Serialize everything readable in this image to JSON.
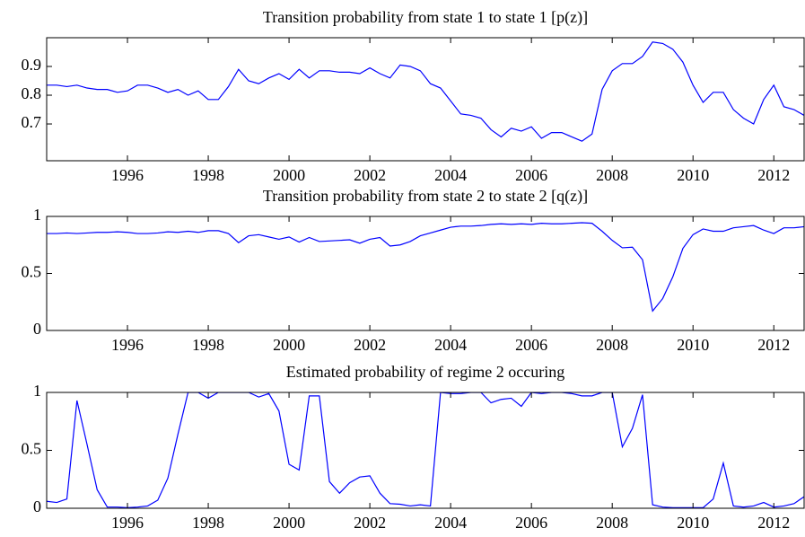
{
  "chart_data": [
    {
      "type": "line",
      "title": "Transition probability from state 1 to state 1 [p(z)]",
      "xlim": [
        1994,
        2012.75
      ],
      "xticks": [
        1996,
        1998,
        2000,
        2002,
        2004,
        2006,
        2008,
        2010,
        2012
      ],
      "ylim": [
        0.572,
        1.0
      ],
      "yticks": [
        0.7,
        0.8,
        0.9
      ],
      "grid": false,
      "x": [
        1994,
        1994.25,
        1994.5,
        1994.75,
        1995,
        1995.25,
        1995.5,
        1995.75,
        1996,
        1996.25,
        1996.5,
        1996.75,
        1997,
        1997.25,
        1997.5,
        1997.75,
        1998,
        1998.25,
        1998.5,
        1998.75,
        1999,
        1999.25,
        1999.5,
        1999.75,
        2000,
        2000.25,
        2000.5,
        2000.75,
        2001,
        2001.25,
        2001.5,
        2001.75,
        2002,
        2002.25,
        2002.5,
        2002.75,
        2003,
        2003.25,
        2003.5,
        2003.75,
        2004,
        2004.25,
        2004.5,
        2004.75,
        2005,
        2005.25,
        2005.5,
        2005.75,
        2006,
        2006.25,
        2006.5,
        2006.75,
        2007,
        2007.25,
        2007.5,
        2007.75,
        2008,
        2008.25,
        2008.5,
        2008.75,
        2009,
        2009.25,
        2009.5,
        2009.75,
        2010,
        2010.25,
        2010.5,
        2010.75,
        2011,
        2011.25,
        2011.5,
        2011.75,
        2012,
        2012.25,
        2012.5,
        2012.75
      ],
      "series": [
        {
          "color": "#0000ff",
          "values": [
            0.835,
            0.835,
            0.83,
            0.835,
            0.825,
            0.82,
            0.82,
            0.81,
            0.815,
            0.835,
            0.835,
            0.825,
            0.81,
            0.82,
            0.8,
            0.815,
            0.785,
            0.785,
            0.83,
            0.89,
            0.85,
            0.84,
            0.86,
            0.875,
            0.855,
            0.89,
            0.86,
            0.885,
            0.885,
            0.88,
            0.88,
            0.875,
            0.895,
            0.875,
            0.86,
            0.905,
            0.9,
            0.885,
            0.84,
            0.825,
            0.78,
            0.735,
            0.73,
            0.72,
            0.68,
            0.655,
            0.685,
            0.675,
            0.69,
            0.65,
            0.67,
            0.67,
            0.655,
            0.64,
            0.665,
            0.82,
            0.885,
            0.91,
            0.91,
            0.935,
            0.985,
            0.98,
            0.96,
            0.915,
            0.835,
            0.775,
            0.81,
            0.81,
            0.75,
            0.72,
            0.7,
            0.785,
            0.835,
            0.76,
            0.75,
            0.73
          ]
        }
      ]
    },
    {
      "type": "line",
      "title": "Transition probability from state 2 to state 2 [q(z)]",
      "xlim": [
        1994,
        2012.75
      ],
      "xticks": [
        1996,
        1998,
        2000,
        2002,
        2004,
        2006,
        2008,
        2010,
        2012
      ],
      "ylim": [
        0,
        1
      ],
      "yticks": [
        0,
        0.5,
        1
      ],
      "grid": false,
      "x": [
        1994,
        1994.25,
        1994.5,
        1994.75,
        1995,
        1995.25,
        1995.5,
        1995.75,
        1996,
        1996.25,
        1996.5,
        1996.75,
        1997,
        1997.25,
        1997.5,
        1997.75,
        1998,
        1998.25,
        1998.5,
        1998.75,
        1999,
        1999.25,
        1999.5,
        1999.75,
        2000,
        2000.25,
        2000.5,
        2000.75,
        2001,
        2001.25,
        2001.5,
        2001.75,
        2002,
        2002.25,
        2002.5,
        2002.75,
        2003,
        2003.25,
        2003.5,
        2003.75,
        2004,
        2004.25,
        2004.5,
        2004.75,
        2005,
        2005.25,
        2005.5,
        2005.75,
        2006,
        2006.25,
        2006.5,
        2006.75,
        2007,
        2007.25,
        2007.5,
        2007.75,
        2008,
        2008.25,
        2008.5,
        2008.75,
        2009,
        2009.25,
        2009.5,
        2009.75,
        2010,
        2010.25,
        2010.5,
        2010.75,
        2011,
        2011.25,
        2011.5,
        2011.75,
        2012,
        2012.25,
        2012.5,
        2012.75
      ],
      "series": [
        {
          "color": "#0000ff",
          "values": [
            0.85,
            0.85,
            0.855,
            0.85,
            0.855,
            0.86,
            0.86,
            0.865,
            0.86,
            0.85,
            0.85,
            0.855,
            0.865,
            0.86,
            0.87,
            0.86,
            0.875,
            0.875,
            0.85,
            0.77,
            0.83,
            0.84,
            0.82,
            0.8,
            0.82,
            0.775,
            0.815,
            0.78,
            0.785,
            0.79,
            0.795,
            0.765,
            0.8,
            0.815,
            0.74,
            0.75,
            0.78,
            0.83,
            0.855,
            0.88,
            0.905,
            0.915,
            0.915,
            0.92,
            0.93,
            0.935,
            0.93,
            0.935,
            0.93,
            0.94,
            0.935,
            0.935,
            0.94,
            0.945,
            0.94,
            0.87,
            0.79,
            0.725,
            0.73,
            0.62,
            0.17,
            0.28,
            0.47,
            0.72,
            0.84,
            0.89,
            0.87,
            0.87,
            0.9,
            0.91,
            0.92,
            0.88,
            0.85,
            0.9,
            0.9,
            0.91
          ]
        }
      ]
    },
    {
      "type": "line",
      "title": "Estimated probability of regime 2 occuring",
      "xlim": [
        1994,
        2012.75
      ],
      "xticks": [
        1996,
        1998,
        2000,
        2002,
        2004,
        2006,
        2008,
        2010,
        2012
      ],
      "ylim": [
        0,
        1
      ],
      "yticks": [
        0,
        0.5,
        1
      ],
      "grid": false,
      "x": [
        1994,
        1994.25,
        1994.5,
        1994.75,
        1995,
        1995.25,
        1995.5,
        1995.75,
        1996,
        1996.25,
        1996.5,
        1996.75,
        1997,
        1997.25,
        1997.5,
        1997.75,
        1998,
        1998.25,
        1998.5,
        1998.75,
        1999,
        1999.25,
        1999.5,
        1999.75,
        2000,
        2000.25,
        2000.5,
        2000.75,
        2001,
        2001.25,
        2001.5,
        2001.75,
        2002,
        2002.25,
        2002.5,
        2002.75,
        2003,
        2003.25,
        2003.5,
        2003.75,
        2004,
        2004.25,
        2004.5,
        2004.75,
        2005,
        2005.25,
        2005.5,
        2005.75,
        2006,
        2006.25,
        2006.5,
        2006.75,
        2007,
        2007.25,
        2007.5,
        2007.75,
        2008,
        2008.25,
        2008.5,
        2008.75,
        2009,
        2009.25,
        2009.5,
        2009.75,
        2010,
        2010.25,
        2010.5,
        2010.75,
        2011,
        2011.25,
        2011.5,
        2011.75,
        2012,
        2012.25,
        2012.5,
        2012.75
      ],
      "series": [
        {
          "color": "#0000ff",
          "values": [
            0.06,
            0.05,
            0.08,
            0.93,
            0.55,
            0.16,
            0.01,
            0.01,
            0.005,
            0.01,
            0.02,
            0.07,
            0.26,
            0.64,
            1.0,
            1.0,
            0.95,
            1.0,
            1.0,
            1.0,
            1.0,
            0.96,
            0.99,
            0.84,
            0.38,
            0.33,
            0.97,
            0.97,
            0.23,
            0.13,
            0.22,
            0.27,
            0.28,
            0.13,
            0.04,
            0.035,
            0.02,
            0.03,
            0.02,
            1.0,
            0.99,
            0.99,
            1.0,
            1.0,
            0.91,
            0.94,
            0.95,
            0.88,
            1.0,
            0.99,
            1.0,
            1.0,
            0.99,
            0.97,
            0.97,
            1.0,
            1.0,
            0.53,
            0.69,
            0.98,
            0.03,
            0.01,
            0.005,
            0.005,
            0.005,
            0.005,
            0.08,
            0.39,
            0.02,
            0.01,
            0.02,
            0.05,
            0.01,
            0.02,
            0.04,
            0.1
          ]
        }
      ]
    }
  ]
}
